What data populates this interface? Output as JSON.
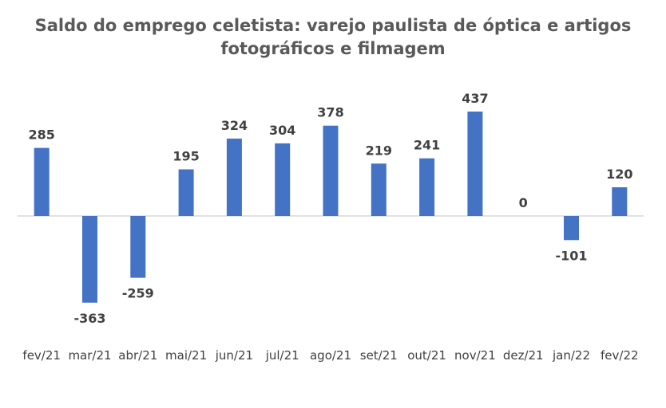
{
  "chart_data": {
    "type": "bar",
    "title": [
      "Saldo do emprego celetista: varejo paulista de óptica e artigos",
      "fotográficos e filmagem"
    ],
    "categories": [
      "fev/21",
      "mar/21",
      "abr/21",
      "mai/21",
      "jun/21",
      "jul/21",
      "ago/21",
      "set/21",
      "out/21",
      "nov/21",
      "dez/21",
      "jan/22",
      "fev/22"
    ],
    "values": [
      285,
      -363,
      -259,
      195,
      324,
      304,
      378,
      219,
      241,
      437,
      0,
      -101,
      120
    ],
    "data_labels": [
      "285",
      "-363",
      "-259",
      "195",
      "324",
      "304",
      "378",
      "219",
      "241",
      "437",
      "0",
      "-101",
      "120"
    ],
    "xlabel": "",
    "ylabel": "",
    "grid": false,
    "legend": "none",
    "colors": {
      "bar": "#4472C4",
      "axis": "#D9D9D9",
      "text": "#404040",
      "title": "#595959"
    }
  }
}
